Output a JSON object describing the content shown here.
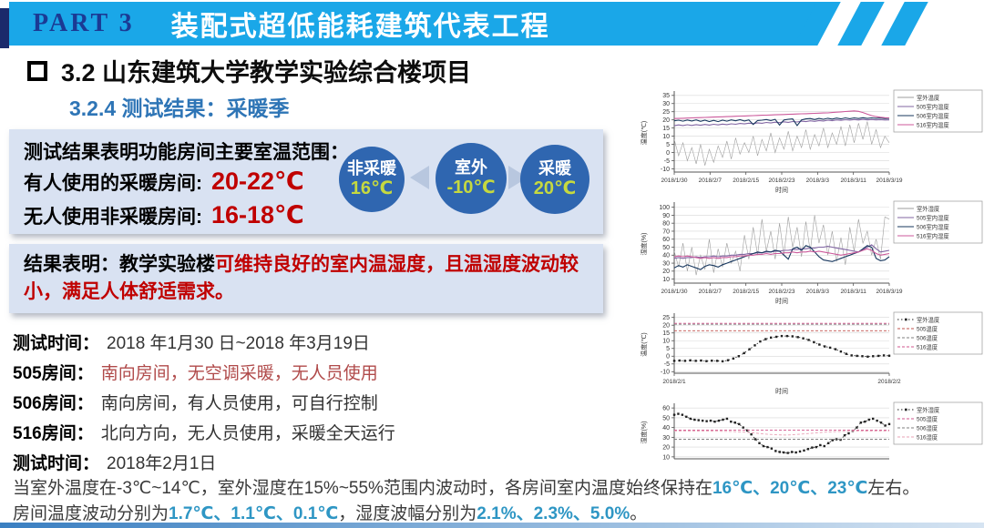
{
  "header": {
    "part_label": "PART 3",
    "title": "装配式超低能耗建筑代表工程"
  },
  "section": {
    "title": "3.2 山东建筑大学教学实验综合楼项目",
    "subtitle": "3.2.4 测试结果：采暖季"
  },
  "result_box1": {
    "line1_bold": "测试结果表明",
    "line1_rest": "功能房间主要室温范围：",
    "line2_label": "有人使用的采暖房间:",
    "line2_value": "20-22℃",
    "line3_label": "无人使用非采暖房间:",
    "line3_value": "16-18℃",
    "circles": [
      {
        "label": "非采暖",
        "value": "16℃"
      },
      {
        "label": "室外",
        "value": "-10℃"
      },
      {
        "label": "采暖",
        "value": "20℃"
      }
    ]
  },
  "result_box2": {
    "black_part": "结果表明：教学实验楼",
    "red_part": "可维持良好的室内温湿度，且温湿度波动较小，满足人体舒适需求。"
  },
  "test_info": {
    "rows": [
      {
        "label": "测试时间：",
        "value": "2018 年1月30 日~2018 年3月19日"
      },
      {
        "label": "505房间：",
        "value": "南向房间，无空调采暖，无人员使用"
      },
      {
        "label": "506房间：",
        "value": "南向房间，有人员使用，可自行控制"
      },
      {
        "label": "516房间：",
        "value": "北向方向，无人员使用，采暖全天运行"
      },
      {
        "label": "测试时间：",
        "value": "2018年2月1日"
      }
    ]
  },
  "summary": {
    "line1_pre": "当室外温度在-3℃~14℃，室外湿度在15%~55%范围内波动时，各房间室内温度始终保持在",
    "line1_highlight": "16℃、20℃、23℃",
    "line1_post": "左右。",
    "line2_pre": "房间温度波动分别为",
    "line2_highlight1": "1.7℃、1.1℃、0.1℃",
    "line2_mid": "，湿度波幅分别为",
    "line2_highlight2": "2.1%、2.3%、5.0%",
    "line2_post": "。"
  },
  "colors": {
    "header_cyan": "#1aa7e8",
    "part_navy": "#1b3a94",
    "subtitle_blue": "#2e75b6",
    "box_bg": "#d9e2f2",
    "highlight_red": "#c00000",
    "room505_red": "#b04a4a",
    "highlight_teal": "#2e96c4",
    "circle_blue": "#2f66b0",
    "circle_value_green": "#c6d93f"
  },
  "chart_data": [
    {
      "type": "line",
      "title": "",
      "xlabel": "时间",
      "ylabel": "温度(℃)",
      "ylim": [
        -12,
        36
      ],
      "yticks": [
        35,
        30,
        25,
        20,
        15,
        10,
        5,
        0,
        -5,
        -10
      ],
      "xticklabels": [
        "2018/1/30",
        "2018/2/7",
        "2018/2/15",
        "2018/2/23",
        "2018/3/3",
        "2018/3/11",
        "2018/3/19"
      ],
      "legend_position": "right",
      "grid": true,
      "series": [
        {
          "name": "室外温度",
          "color": "#9e9e9e",
          "width": 0.6,
          "values": [
            8,
            -2,
            6,
            -5,
            3,
            -7,
            5,
            -8,
            2,
            -6,
            4,
            -3,
            7,
            -4,
            9,
            -1,
            6,
            0,
            10,
            -2,
            8,
            1,
            12,
            0,
            9,
            2,
            13,
            1,
            10,
            3,
            14,
            2,
            11,
            4,
            15,
            3,
            12,
            5,
            16,
            4,
            17,
            6,
            18,
            8,
            19,
            5,
            14,
            3,
            10,
            6
          ]
        },
        {
          "name": "505室内温度",
          "color": "#8064a2",
          "width": 1.1,
          "values": [
            16.4,
            16.9,
            16.5,
            17.0,
            16.6,
            17.1,
            16.7,
            17.2,
            16.8,
            17.3,
            16.9,
            17.4,
            17.1,
            17.6,
            17.3,
            17.8,
            17.5,
            18.0,
            17.7,
            18.2,
            17.9,
            18.4,
            18.1,
            18.6,
            18.3,
            18.8,
            18.5,
            19.0,
            18.7,
            19.2,
            18.9,
            19.4,
            19.1,
            19.6,
            19.3,
            19.8,
            19.5,
            20.0,
            19.7,
            20.1,
            19.8,
            20.2,
            19.9,
            20.3,
            20.0,
            20.2,
            20.0,
            20.1,
            19.9,
            20.0
          ]
        },
        {
          "name": "506室内温度",
          "color": "#17375e",
          "width": 1.1,
          "values": [
            19.4,
            19.8,
            19.2,
            19.9,
            19.3,
            20.0,
            19.1,
            19.8,
            19.0,
            19.7,
            18.9,
            19.8,
            19.2,
            20.0,
            19.4,
            20.1,
            19.3,
            20.0,
            17.2,
            19.6,
            19.8,
            20.2,
            19.6,
            20.3,
            16.8,
            19.9,
            20.4,
            20.6,
            16.5,
            20.0,
            20.6,
            20.8,
            20.2,
            20.9,
            20.4,
            21.0,
            20.5,
            21.1,
            20.6,
            21.2,
            20.7,
            21.2,
            20.8,
            21.3,
            20.9,
            21.2,
            21.0,
            21.1,
            20.8,
            21.0
          ]
        },
        {
          "name": "516室内温度",
          "color": "#cc5a9b",
          "width": 1.1,
          "values": [
            20.8,
            20.9,
            21.0,
            21.1,
            21.2,
            21.3,
            21.4,
            21.5,
            21.6,
            21.7,
            21.8,
            21.9,
            22.0,
            22.1,
            22.2,
            22.3,
            22.4,
            22.5,
            22.6,
            22.7,
            22.8,
            22.9,
            23.0,
            23.1,
            23.2,
            23.3,
            23.4,
            23.5,
            23.6,
            23.7,
            23.8,
            23.9,
            24.0,
            24.1,
            24.2,
            24.3,
            24.5,
            24.7,
            24.9,
            25.1,
            25.3,
            25.5,
            25.2,
            24.5,
            23.5,
            22.6,
            22.0,
            21.6,
            21.3,
            21.2
          ]
        }
      ]
    },
    {
      "type": "line",
      "title": "",
      "xlabel": "时间",
      "ylabel": "湿度(%)",
      "ylim": [
        5,
        103
      ],
      "yticks": [
        100,
        90,
        80,
        70,
        60,
        50,
        40,
        30,
        20,
        10
      ],
      "xticklabels": [
        "2018/1/30",
        "2018/2/7",
        "2018/2/15",
        "2018/2/23",
        "2018/3/3",
        "2018/3/11",
        "2018/3/19"
      ],
      "legend_position": "right",
      "grid": true,
      "series": [
        {
          "name": "室外湿度",
          "color": "#9e9e9e",
          "width": 0.6,
          "values": [
            45,
            25,
            55,
            20,
            50,
            15,
            40,
            22,
            60,
            18,
            48,
            25,
            55,
            30,
            45,
            20,
            65,
            35,
            75,
            40,
            85,
            45,
            70,
            35,
            80,
            40,
            88,
            50,
            75,
            38,
            82,
            45,
            90,
            55,
            78,
            40,
            70,
            32,
            62,
            28,
            75,
            45,
            85,
            55,
            70,
            40,
            60,
            35,
            88,
            85
          ]
        },
        {
          "name": "505室内湿度",
          "color": "#8064a2",
          "width": 1.1,
          "values": [
            36,
            37,
            36,
            37,
            37,
            38,
            37,
            38,
            38,
            39,
            38,
            39,
            39,
            40,
            40,
            41,
            41,
            42,
            42,
            43,
            43,
            44,
            44,
            45,
            45,
            46,
            46,
            47,
            47,
            48,
            48,
            49,
            49,
            50,
            50,
            51,
            50,
            49,
            48,
            47,
            46,
            45,
            44,
            47,
            50,
            53,
            48,
            44,
            45,
            46
          ]
        },
        {
          "name": "506室内湿度",
          "color": "#17375e",
          "width": 1.1,
          "values": [
            24,
            27,
            25,
            28,
            26,
            24,
            22,
            26,
            28,
            27,
            25,
            28,
            30,
            32,
            34,
            36,
            38,
            40,
            42,
            44,
            43,
            45,
            44,
            46,
            45,
            40,
            35,
            48,
            50,
            46,
            52,
            50,
            44,
            38,
            34,
            33,
            32,
            34,
            36,
            38,
            40,
            42,
            44,
            48,
            52,
            50,
            36,
            33,
            34,
            38
          ]
        },
        {
          "name": "516室内湿度",
          "color": "#cc5a9b",
          "width": 1.1,
          "values": [
            38,
            39,
            38,
            39,
            38,
            37,
            36,
            37,
            36,
            37,
            36,
            37,
            37,
            38,
            38,
            39,
            39,
            40,
            40,
            41,
            41,
            42,
            41,
            42,
            42,
            43,
            43,
            44,
            43,
            44,
            44,
            45,
            44,
            45,
            44,
            43,
            42,
            41,
            40,
            41,
            42,
            43,
            44,
            46,
            48,
            46,
            42,
            40,
            41,
            42
          ]
        }
      ]
    },
    {
      "type": "line",
      "title": "",
      "xlabel": "时间",
      "ylabel": "温度(℃)",
      "ylim": [
        -11,
        26
      ],
      "yticks": [
        25,
        20,
        15,
        10,
        5,
        0,
        -5,
        -10
      ],
      "xticklabels": [
        "2018/2/1",
        "2018/2/2"
      ],
      "legend_position": "right",
      "grid": true,
      "series": [
        {
          "name": "室外温度",
          "color": "#222222",
          "width": 0.8,
          "dash": "1.5,2.5",
          "marker": true,
          "values": [
            -3,
            -2.8,
            -3,
            -2.7,
            -3,
            -2.8,
            -3.2,
            -2.9,
            -3,
            -3.3,
            -2.6,
            -1.5,
            0,
            2,
            4.5,
            7,
            9.5,
            11,
            12,
            12.5,
            13,
            13,
            12.8,
            12.3,
            11.5,
            10.5,
            9,
            7.5,
            6.3,
            5.5,
            4.5,
            3,
            1.5,
            0.5,
            0.2,
            0,
            -0.3,
            0,
            0.2,
            0.5,
            0.3
          ]
        },
        {
          "name": "505温度",
          "color": "#c0504d",
          "width": 0.9,
          "dash": "3,2",
          "values": [
            16.4,
            16.4
          ]
        },
        {
          "name": "506温度",
          "color": "#7f7f7f",
          "width": 0.9,
          "dash": "3,2",
          "values": [
            20.6,
            20.6
          ]
        },
        {
          "name": "516温度",
          "color": "#d2568c",
          "width": 0.9,
          "dash": "3,2",
          "values": [
            21.2,
            21.2
          ]
        }
      ]
    },
    {
      "type": "line",
      "title": "",
      "xlabel": "",
      "ylabel": "湿度(%)",
      "ylim": [
        8,
        62
      ],
      "yticks": [
        60,
        50,
        40,
        30,
        20,
        10
      ],
      "xticklabels": [],
      "legend_position": "right",
      "grid": true,
      "series": [
        {
          "name": "室外湿度",
          "color": "#222222",
          "width": 0.8,
          "dash": "1.5,2.5",
          "marker": true,
          "values": [
            53,
            54,
            53,
            51,
            49,
            48,
            47.5,
            47,
            46.5,
            47,
            46,
            47,
            48,
            49,
            46,
            45,
            43.5,
            40,
            37,
            33,
            28,
            24,
            21,
            20,
            18.5,
            16,
            15,
            14.5,
            14,
            15,
            14.5,
            15.5,
            16.5,
            18,
            19.5,
            20,
            22,
            21,
            24,
            27,
            28,
            27.5,
            32,
            34,
            36.5,
            40,
            45,
            46,
            48,
            49,
            47,
            45,
            42,
            43.5
          ]
        },
        {
          "name": "505湿度",
          "color": "#d2568c",
          "width": 0.9,
          "dash": "3,2",
          "values": [
            37.2,
            37.2
          ]
        },
        {
          "name": "506湿度",
          "color": "#7f7f7f",
          "width": 0.9,
          "dash": "3,2",
          "values": [
            28,
            28
          ]
        },
        {
          "name": "516湿度",
          "color": "#e8a0b4",
          "width": 0.9,
          "dash": "3,2",
          "values": [
            36.5,
            36.5,
            36.4,
            36.3,
            36.2,
            36,
            35.5,
            34.5,
            33.3,
            32.6,
            32.3,
            33,
            34,
            35,
            35.7,
            36.1,
            36.3,
            36.4,
            36.5,
            36.5
          ]
        }
      ]
    }
  ]
}
